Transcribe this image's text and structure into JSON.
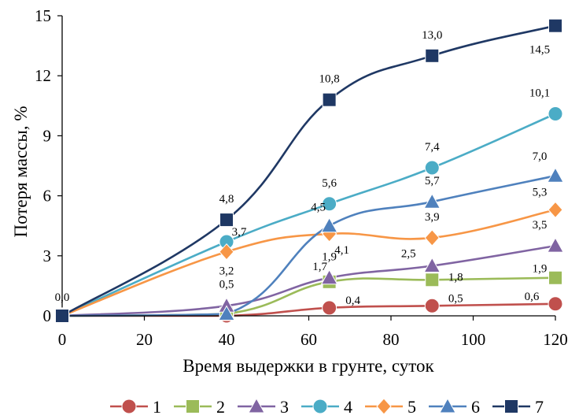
{
  "chart_data": {
    "type": "line",
    "title": "",
    "xlabel": "Время выдержки в грунте, суток",
    "ylabel": "Потеря массы, %",
    "xlim": [
      0,
      120
    ],
    "ylim": [
      0,
      15
    ],
    "x_ticks": [
      "0",
      "20",
      "40",
      "60",
      "80",
      "100",
      "120"
    ],
    "y_ticks": [
      "0",
      "3",
      "6",
      "9",
      "12",
      "15"
    ],
    "x": [
      0,
      40,
      65,
      90,
      120
    ],
    "grid": false,
    "legend_position": "bottom",
    "series": [
      {
        "name": "1",
        "marker": "circle",
        "color": "#c0504d",
        "values": [
          0,
          0,
          0.4,
          0.5,
          0.6
        ],
        "labels": [
          "",
          "",
          "0,4",
          "0,5",
          "0,6"
        ]
      },
      {
        "name": "2",
        "marker": "square",
        "color": "#9bbb59",
        "values": [
          0,
          0.1,
          1.7,
          1.8,
          1.9
        ],
        "labels": [
          "",
          "",
          "1,7",
          "1,8",
          "1,9"
        ]
      },
      {
        "name": "3",
        "marker": "triangle",
        "color": "#8064a2",
        "values": [
          0,
          0.5,
          1.9,
          2.5,
          3.5
        ],
        "labels": [
          "",
          "0,5",
          "1,9",
          "2,5",
          "3,5"
        ]
      },
      {
        "name": "4",
        "marker": "circle",
        "color": "#4bacc6",
        "values": [
          0,
          3.7,
          5.6,
          7.4,
          10.1
        ],
        "labels": [
          "",
          "3,7",
          "5,6",
          "7,4",
          "10,1"
        ]
      },
      {
        "name": "5",
        "marker": "diamond",
        "color": "#f79646",
        "values": [
          0,
          3.2,
          4.1,
          3.9,
          5.3
        ],
        "labels": [
          "",
          "3,2",
          "4,1",
          "3,9",
          "5,3"
        ]
      },
      {
        "name": "6",
        "marker": "triangle",
        "color": "#4f81bd",
        "values": [
          0,
          0.1,
          4.5,
          5.7,
          7.0
        ],
        "labels": [
          "",
          "",
          "4,5",
          "5,7",
          "7,0"
        ]
      },
      {
        "name": "7",
        "marker": "square",
        "color": "#1f3864",
        "values": [
          0,
          4.8,
          10.8,
          13.0,
          14.5
        ],
        "labels": [
          "0,0",
          "4,8",
          "10,8",
          "13,0",
          "14,5"
        ]
      }
    ]
  }
}
